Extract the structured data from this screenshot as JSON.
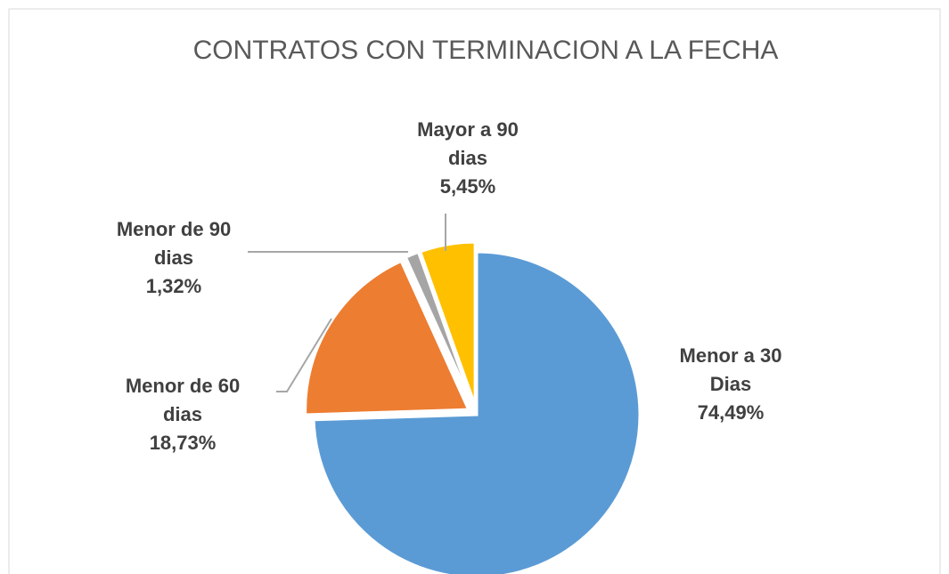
{
  "chart_data": {
    "type": "pie",
    "title": "CONTRATOS CON TERMINACION A LA FECHA",
    "categories": [
      "Menor a 30 Dias",
      "Menor de 60 dias",
      "Menor de 90 dias",
      "Mayor a 90 dias"
    ],
    "values": [
      74.49,
      18.73,
      1.32,
      5.45
    ],
    "value_labels": [
      "74,49%",
      "18,73%",
      "1,32%",
      "5,45%"
    ],
    "colors": [
      "#5b9bd5",
      "#ed7d31",
      "#a5a5a5",
      "#ffc000"
    ]
  }
}
